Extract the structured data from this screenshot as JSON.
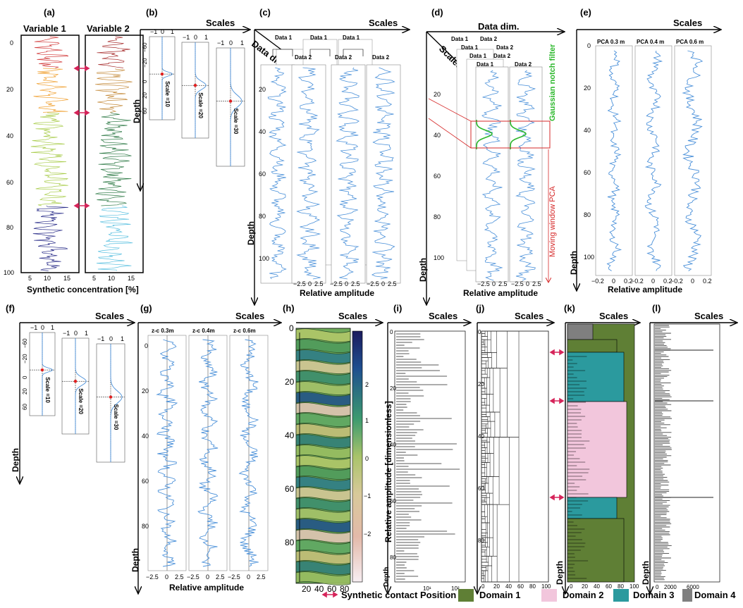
{
  "panels": {
    "a": {
      "label": "(a)",
      "v1": "Variable 1",
      "v2": "Variable 2",
      "xlabel": "Synthetic concentration [%]",
      "yticks": [
        "0",
        "20",
        "40",
        "60",
        "80",
        "100"
      ],
      "xticks": [
        "5",
        "10",
        "15"
      ]
    },
    "b": {
      "label": "(b)",
      "title": "Scales",
      "depth": "Depth",
      "scales": [
        "Scale =10",
        "Scale =20",
        "Scale =30"
      ],
      "top_ticks": [
        "−1",
        "0",
        "1"
      ],
      "yticks": [
        "−60",
        "−20",
        "0",
        "20",
        "60"
      ]
    },
    "c": {
      "label": "(c)",
      "title": "Scales",
      "datadim": "Data dim.",
      "depth": "Depth",
      "xlabel": "Relative amplitude",
      "d1": "Data 1",
      "d2": "Data 2",
      "yticks": [
        "20",
        "40",
        "60",
        "80",
        "100"
      ],
      "xticks": [
        "−2.5",
        "0",
        "2.5"
      ]
    },
    "d": {
      "label": "(d)",
      "title": "Data dim.",
      "scales": "Scales",
      "depth": "Depth",
      "xlabel": "Relative amplitude",
      "d1": "Data 1",
      "d2": "Data 2",
      "filter": "Gaussian notch filter",
      "pca": "Moving window PCA",
      "yticks": [
        "20",
        "40",
        "60",
        "80",
        "100"
      ],
      "xticks": [
        "−2.5",
        "0",
        "2.5"
      ]
    },
    "e": {
      "label": "(e)",
      "title": "Scales",
      "depth": "Depth",
      "xlabel": "Relative amplitude",
      "cols": [
        "PCA 0.3 m",
        "PCA 0.4 m",
        "PCA 0.6 m"
      ],
      "yticks": [
        "0",
        "20",
        "40",
        "60",
        "80",
        "100"
      ],
      "xticks": [
        "−0.2",
        "0",
        "0.2"
      ]
    },
    "f": {
      "label": "(f)",
      "title": "Scales",
      "depth": "Depth",
      "scales": [
        "Scale =10",
        "Scale =20",
        "Scale =30"
      ],
      "top_ticks": [
        "−1",
        "0",
        "1"
      ],
      "yticks": [
        "−60",
        "−20",
        "0",
        "20",
        "60"
      ]
    },
    "g": {
      "label": "(g)",
      "title": "Scales",
      "depth": "Depth",
      "xlabel": "Relative amplitude",
      "cols": [
        "z-c 0.3m",
        "z-c 0.4m",
        "z-c 0.6m"
      ],
      "yticks": [
        "0",
        "20",
        "40",
        "60",
        "80"
      ],
      "xticks": [
        "−2.5",
        "0",
        "2.5"
      ]
    },
    "h": {
      "label": "(h)",
      "title": "Scales",
      "cbar_label": "Relative amplitude [dimensionless]",
      "yticks": [
        "0",
        "20",
        "40",
        "60",
        "80"
      ],
      "xticks": [
        "20",
        "40",
        "60",
        "80"
      ],
      "cticks": [
        "2",
        "1",
        "0",
        "−1",
        "−2"
      ]
    },
    "i": {
      "label": "(i)",
      "title": "Scales",
      "depth": "Depth",
      "yticks": [
        "0",
        "20",
        "40",
        "60",
        "80"
      ],
      "xticks": [
        "10¹",
        "10²"
      ]
    },
    "j": {
      "label": "(j)",
      "title": "Scales",
      "yticks": [
        "0",
        "20",
        "40",
        "60",
        "80"
      ],
      "xticks": [
        "0",
        "20",
        "40",
        "60",
        "80",
        "100"
      ]
    },
    "k": {
      "label": "(k)",
      "title": "Scales",
      "depth": "Depth",
      "xticks": [
        "0",
        "20",
        "40",
        "60",
        "80",
        "100"
      ]
    },
    "l": {
      "label": "(l)",
      "title": "Scales",
      "depth": "Depth",
      "xticks": [
        "0",
        "2000",
        "6000"
      ]
    }
  },
  "legend": {
    "contact": "Synthetic contact Position",
    "items": [
      {
        "label": "Domain 1",
        "color": "#5f7f35"
      },
      {
        "label": "Domain 2",
        "color": "#f2c6dc"
      },
      {
        "label": "Domain 3",
        "color": "#2b9a9e"
      },
      {
        "label": "Domain 4",
        "color": "#7f7f7f"
      }
    ]
  },
  "colors": {
    "contact": "#d6245a",
    "signal": "#4a90d9",
    "filter": "#2db82d",
    "pca": "#d62a2a"
  }
}
